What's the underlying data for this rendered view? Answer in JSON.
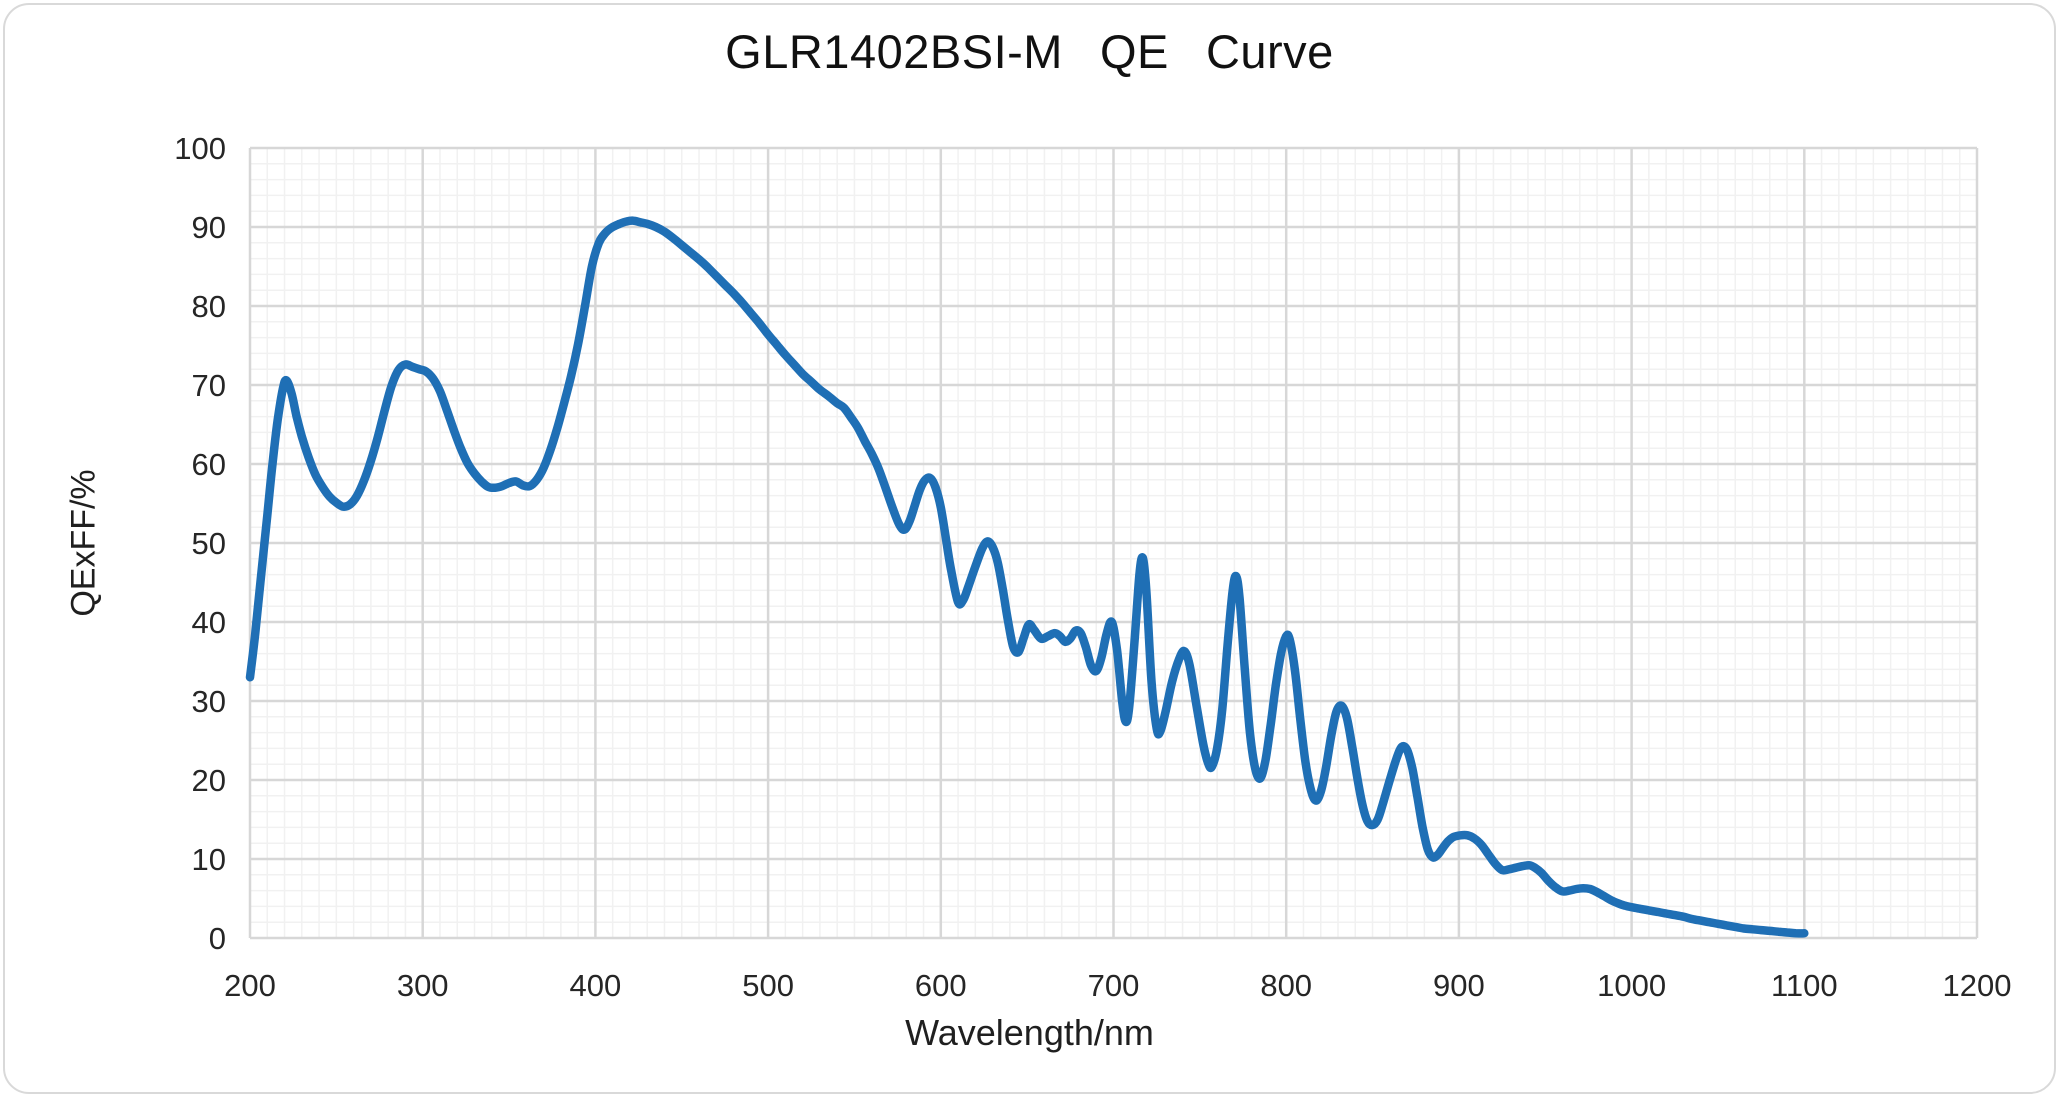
{
  "window": {
    "background": "#ffffff",
    "border_color": "#d9d9d9"
  },
  "chart_data": {
    "type": "line",
    "title": "GLR1402BSI-M QE Curve",
    "xlabel": "Wavelength/nm",
    "ylabel": "QExFF/%",
    "xlim": [
      200,
      1200
    ],
    "ylim": [
      0,
      100
    ],
    "x_major_ticks": [
      200,
      300,
      400,
      500,
      600,
      700,
      800,
      900,
      1000,
      1100,
      1200
    ],
    "y_major_ticks": [
      0,
      10,
      20,
      30,
      40,
      50,
      60,
      70,
      80,
      90,
      100
    ],
    "x_minor_step": 10,
    "y_minor_step": 2,
    "grid": {
      "major_color": "#d7d7d7",
      "minor_color": "#f1f1f1",
      "major_width": 2.5,
      "minor_width": 1.5
    },
    "legend_position": "none",
    "axis_text_color": "#262626",
    "series": [
      {
        "name": "QE",
        "color": "#1f6fb5",
        "stroke_width": 8.5,
        "smooth": true,
        "points": [
          [
            200,
            33
          ],
          [
            203,
            38.5
          ],
          [
            206,
            45
          ],
          [
            210,
            53.5
          ],
          [
            213,
            60
          ],
          [
            216,
            65.5
          ],
          [
            219,
            69.5
          ],
          [
            221,
            70.6
          ],
          [
            224,
            69
          ],
          [
            227,
            66
          ],
          [
            230,
            63.5
          ],
          [
            234,
            60.8
          ],
          [
            238,
            58.6
          ],
          [
            242,
            57.1
          ],
          [
            246,
            55.9
          ],
          [
            250,
            55.1
          ],
          [
            254,
            54.6
          ],
          [
            258,
            54.9
          ],
          [
            262,
            56
          ],
          [
            266,
            57.9
          ],
          [
            270,
            60.4
          ],
          [
            274,
            63.4
          ],
          [
            278,
            66.8
          ],
          [
            282,
            69.9
          ],
          [
            286,
            71.9
          ],
          [
            290,
            72.6
          ],
          [
            294,
            72.3
          ],
          [
            298,
            72
          ],
          [
            302,
            71.7
          ],
          [
            306,
            70.8
          ],
          [
            310,
            69.2
          ],
          [
            314,
            66.8
          ],
          [
            318,
            64.3
          ],
          [
            322,
            62
          ],
          [
            326,
            60.1
          ],
          [
            330,
            58.8
          ],
          [
            334,
            57.8
          ],
          [
            338,
            57.1
          ],
          [
            342,
            57
          ],
          [
            346,
            57.2
          ],
          [
            350,
            57.6
          ],
          [
            354,
            57.8
          ],
          [
            358,
            57.3
          ],
          [
            362,
            57.2
          ],
          [
            366,
            58
          ],
          [
            370,
            59.5
          ],
          [
            374,
            61.8
          ],
          [
            378,
            64.6
          ],
          [
            382,
            67.8
          ],
          [
            386,
            71.2
          ],
          [
            390,
            75.2
          ],
          [
            394,
            80
          ],
          [
            398,
            85
          ],
          [
            402,
            88
          ],
          [
            406,
            89.3
          ],
          [
            410,
            90
          ],
          [
            414,
            90.4
          ],
          [
            418,
            90.7
          ],
          [
            422,
            90.8
          ],
          [
            426,
            90.6
          ],
          [
            430,
            90.4
          ],
          [
            435,
            90
          ],
          [
            440,
            89.4
          ],
          [
            445,
            88.6
          ],
          [
            450,
            87.7
          ],
          [
            455,
            86.8
          ],
          [
            460,
            85.9
          ],
          [
            465,
            84.9
          ],
          [
            470,
            83.8
          ],
          [
            475,
            82.7
          ],
          [
            480,
            81.6
          ],
          [
            485,
            80.4
          ],
          [
            490,
            79.1
          ],
          [
            495,
            77.8
          ],
          [
            500,
            76.4
          ],
          [
            505,
            75.1
          ],
          [
            510,
            73.8
          ],
          [
            515,
            72.6
          ],
          [
            520,
            71.4
          ],
          [
            525,
            70.4
          ],
          [
            530,
            69.4
          ],
          [
            535,
            68.6
          ],
          [
            540,
            67.7
          ],
          [
            544,
            67.1
          ],
          [
            548,
            65.9
          ],
          [
            552,
            64.6
          ],
          [
            556,
            62.9
          ],
          [
            560,
            61.3
          ],
          [
            564,
            59.4
          ],
          [
            568,
            57
          ],
          [
            572,
            54.5
          ],
          [
            576,
            52.3
          ],
          [
            579,
            51.7
          ],
          [
            582,
            52.8
          ],
          [
            585,
            54.8
          ],
          [
            588,
            56.8
          ],
          [
            591,
            58
          ],
          [
            594,
            58.2
          ],
          [
            597,
            57
          ],
          [
            600,
            54.5
          ],
          [
            603,
            50.5
          ],
          [
            606,
            46.5
          ],
          [
            610,
            42.5
          ],
          [
            613,
            42.8
          ],
          [
            616,
            44.5
          ],
          [
            620,
            47
          ],
          [
            624,
            49.3
          ],
          [
            627,
            50.2
          ],
          [
            630,
            49.5
          ],
          [
            633,
            47.5
          ],
          [
            636,
            44
          ],
          [
            639,
            40
          ],
          [
            642,
            36.8
          ],
          [
            645,
            36.2
          ],
          [
            648,
            38
          ],
          [
            651,
            39.7
          ],
          [
            654,
            39
          ],
          [
            658,
            37.9
          ],
          [
            662,
            38.2
          ],
          [
            666,
            38.6
          ],
          [
            669,
            38.2
          ],
          [
            672,
            37.5
          ],
          [
            675,
            37.9
          ],
          [
            678,
            38.9
          ],
          [
            681,
            38.6
          ],
          [
            684,
            36.8
          ],
          [
            687,
            34.5
          ],
          [
            690,
            33.8
          ],
          [
            693,
            35.5
          ],
          [
            696,
            38.5
          ],
          [
            699,
            40
          ],
          [
            702,
            36.5
          ],
          [
            705,
            30
          ],
          [
            707,
            27.4
          ],
          [
            709,
            29
          ],
          [
            712,
            37
          ],
          [
            715,
            46
          ],
          [
            717,
            48.1
          ],
          [
            719,
            44
          ],
          [
            722,
            32.5
          ],
          [
            725,
            26.5
          ],
          [
            727,
            26.1
          ],
          [
            730,
            28.5
          ],
          [
            734,
            32.5
          ],
          [
            738,
            35.3
          ],
          [
            741,
            36.3
          ],
          [
            744,
            34.6
          ],
          [
            748,
            29.5
          ],
          [
            752,
            24.5
          ],
          [
            755,
            22
          ],
          [
            757,
            21.7
          ],
          [
            760,
            24
          ],
          [
            763,
            29
          ],
          [
            766,
            37
          ],
          [
            769,
            44
          ],
          [
            771,
            45.8
          ],
          [
            773,
            43
          ],
          [
            776,
            34
          ],
          [
            779,
            26
          ],
          [
            782,
            21.5
          ],
          [
            785,
            20.2
          ],
          [
            788,
            22.5
          ],
          [
            791,
            27
          ],
          [
            794,
            32
          ],
          [
            797,
            36
          ],
          [
            800,
            38.2
          ],
          [
            802,
            37.8
          ],
          [
            805,
            34
          ],
          [
            808,
            28
          ],
          [
            811,
            22.5
          ],
          [
            814,
            19
          ],
          [
            817,
            17.4
          ],
          [
            820,
            18.5
          ],
          [
            823,
            21.5
          ],
          [
            826,
            25.5
          ],
          [
            829,
            28.6
          ],
          [
            832,
            29.4
          ],
          [
            835,
            28
          ],
          [
            838,
            24.5
          ],
          [
            841,
            20.5
          ],
          [
            844,
            17
          ],
          [
            847,
            14.8
          ],
          [
            850,
            14.3
          ],
          [
            853,
            15
          ],
          [
            856,
            17
          ],
          [
            860,
            20
          ],
          [
            864,
            22.8
          ],
          [
            867,
            24.2
          ],
          [
            870,
            23.8
          ],
          [
            873,
            21.5
          ],
          [
            876,
            17.8
          ],
          [
            879,
            14
          ],
          [
            882,
            11.2
          ],
          [
            885,
            10.2
          ],
          [
            888,
            10.6
          ],
          [
            891,
            11.5
          ],
          [
            894,
            12.3
          ],
          [
            897,
            12.8
          ],
          [
            901,
            13
          ],
          [
            905,
            13
          ],
          [
            909,
            12.6
          ],
          [
            913,
            11.8
          ],
          [
            917,
            10.6
          ],
          [
            921,
            9.4
          ],
          [
            925,
            8.6
          ],
          [
            929,
            8.7
          ],
          [
            933,
            8.9
          ],
          [
            937,
            9.1
          ],
          [
            941,
            9.2
          ],
          [
            944,
            8.9
          ],
          [
            948,
            8.2
          ],
          [
            952,
            7.2
          ],
          [
            956,
            6.4
          ],
          [
            960,
            5.9
          ],
          [
            964,
            6
          ],
          [
            968,
            6.2
          ],
          [
            972,
            6.3
          ],
          [
            976,
            6.2
          ],
          [
            980,
            5.8
          ],
          [
            984,
            5.3
          ],
          [
            988,
            4.8
          ],
          [
            992,
            4.4
          ],
          [
            996,
            4.1
          ],
          [
            1000,
            3.9
          ],
          [
            1005,
            3.7
          ],
          [
            1010,
            3.5
          ],
          [
            1015,
            3.3
          ],
          [
            1020,
            3.1
          ],
          [
            1025,
            2.9
          ],
          [
            1030,
            2.7
          ],
          [
            1035,
            2.4
          ],
          [
            1040,
            2.2
          ],
          [
            1045,
            2
          ],
          [
            1050,
            1.8
          ],
          [
            1055,
            1.6
          ],
          [
            1060,
            1.4
          ],
          [
            1065,
            1.2
          ],
          [
            1070,
            1.1
          ],
          [
            1075,
            1
          ],
          [
            1080,
            0.9
          ],
          [
            1085,
            0.8
          ],
          [
            1090,
            0.7
          ],
          [
            1095,
            0.6
          ],
          [
            1100,
            0.6
          ]
        ]
      }
    ]
  }
}
